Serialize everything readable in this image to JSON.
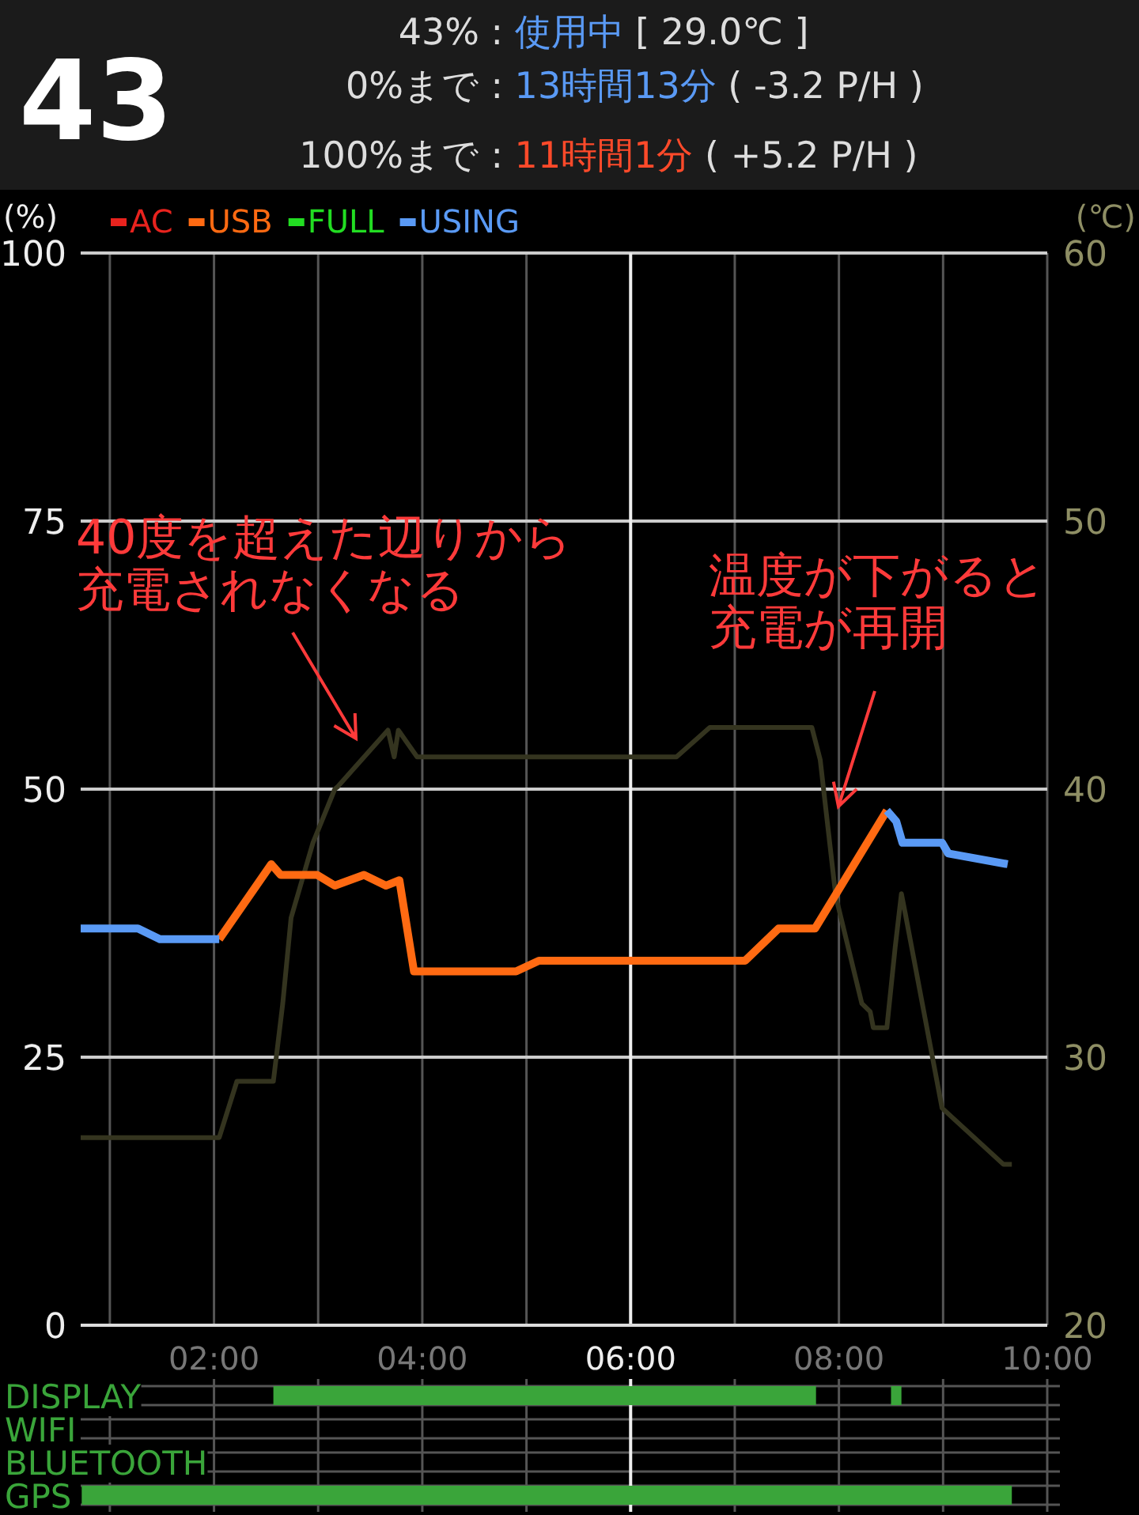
{
  "chart_data": [
    {
      "type": "other",
      "title": "43",
      "annotations": [
        "43% : 使用中 [ 29.0℃ ]",
        "0%まで : 13時間13分 ( -3.2 P/H )",
        "100%まで : 11時間1分 ( +5.2 P/H )"
      ]
    },
    {
      "type": "line",
      "ylabel": "(%)",
      "y2label": "(℃)",
      "legend": "top left",
      "grid": true,
      "xlim": [
        0.72,
        10
      ],
      "xticks": [
        {
          "value": 1,
          "label": null
        },
        {
          "value": 2,
          "label": "02:00"
        },
        {
          "value": 3,
          "label": null
        },
        {
          "value": 4,
          "label": "04:00"
        },
        {
          "value": 5,
          "label": null
        },
        {
          "value": 6,
          "label": "06:00"
        },
        {
          "value": 7,
          "label": null
        },
        {
          "value": 8,
          "label": "08:00"
        },
        {
          "value": 9,
          "label": null
        },
        {
          "value": 10,
          "label": "10:00"
        }
      ],
      "ylim": [
        0,
        100
      ],
      "yticks": [
        0,
        25,
        50,
        75,
        100
      ],
      "y2lim": [
        20,
        60
      ],
      "y2ticks": [
        20,
        30,
        40,
        50,
        60
      ],
      "series": [
        {
          "name": "AC",
          "color": "#e8231e"
        },
        {
          "name": "USB",
          "color": "#ff6a12",
          "x": [
            2.05,
            2.55,
            2.64,
            2.99,
            3.16,
            3.44,
            3.65,
            3.78,
            3.92,
            4.9,
            5.12,
            7.1,
            7.42,
            7.77,
            8.46
          ],
          "values": [
            36,
            43,
            42,
            42,
            41,
            42,
            41,
            41.5,
            33,
            33,
            34,
            34,
            37,
            37,
            48
          ]
        },
        {
          "name": "FULL",
          "color": "#22dd22"
        },
        {
          "name": "USING",
          "color": "#5a9af5",
          "x": [
            0.72,
            1.27,
            1.48,
            2.05,
            null,
            8.46,
            8.55,
            8.61,
            8.99,
            9.05,
            9.62
          ],
          "values": [
            37,
            37,
            36,
            36,
            null,
            48,
            47,
            45,
            45,
            44,
            43
          ]
        },
        {
          "color": "#34341f",
          "axis": "y2",
          "x": [
            0.72,
            2.05,
            2.22,
            2.57,
            2.66,
            2.74,
            2.95,
            3.16,
            3.19,
            3.67,
            3.73,
            3.77,
            3.95,
            6.44,
            6.76,
            7.74,
            7.82,
            7.97,
            8.22,
            8.3,
            8.33,
            8.46,
            8.54,
            8.6,
            8.64,
            8.99,
            9.58,
            9.66
          ],
          "values": [
            27,
            27,
            29.1,
            29.1,
            32,
            35.2,
            38,
            40,
            40.1,
            42.2,
            41.2,
            42.2,
            41.2,
            41.2,
            42.3,
            42.3,
            41.1,
            36,
            32,
            31.7,
            31.1,
            31.1,
            34.1,
            36.1,
            35.3,
            28.1,
            26,
            26
          ]
        }
      ],
      "ref_lines": [
        {
          "axis": "x",
          "value": 6,
          "color": "#eeeeee"
        }
      ],
      "annotations": [
        "40度を超えた辺りから充電されなくなる",
        "温度が下がると充電が再開"
      ]
    },
    {
      "type": "bar",
      "orientation": "horizontal",
      "grid": true,
      "tick_labels": "y",
      "ref_lines": [
        {
          "axis": "x",
          "value": 6,
          "color": "#eeeeee"
        }
      ],
      "categories": [
        "DISPLAY",
        "WIFI",
        "BLUETOOTH",
        "GPS"
      ],
      "xlim": [
        0.72,
        10
      ],
      "xticks": [
        {
          "value": 1,
          "label": null
        },
        {
          "value": 2,
          "label": null
        },
        {
          "value": 3,
          "label": null
        },
        {
          "value": 4,
          "label": null
        },
        {
          "value": 5,
          "label": null
        },
        {
          "value": 6,
          "label": null
        },
        {
          "value": 7,
          "label": null
        },
        {
          "value": 8,
          "label": null
        },
        {
          "value": 9,
          "label": null
        },
        {
          "value": 10,
          "label": null
        }
      ],
      "series": [
        {
          "color": "#3aa53a",
          "base": [
            2.57,
            null,
            null,
            0.73
          ],
          "values": [
            5.21,
            null,
            null,
            8.93
          ]
        },
        {
          "color": "#3aa53a",
          "base": [
            8.5,
            null,
            null,
            null
          ],
          "values": [
            0.1,
            null,
            null,
            null
          ]
        }
      ]
    }
  ]
}
